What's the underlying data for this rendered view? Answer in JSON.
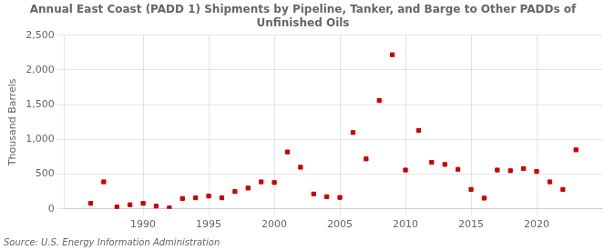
{
  "chart_data": {
    "type": "scatter",
    "title": "Annual East Coast (PADD 1) Shipments by Pipeline, Tanker, and Barge to Other PADDs of\nUnfinished Oils",
    "ylabel": "Thousand Barrels",
    "annotations": [
      "Source: U.S. Energy Information Administration"
    ],
    "x": [
      1986,
      1987,
      1988,
      1989,
      1990,
      1991,
      1992,
      1993,
      1994,
      1995,
      1996,
      1997,
      1998,
      1999,
      2000,
      2001,
      2002,
      2003,
      2004,
      2005,
      2006,
      2007,
      2008,
      2009,
      2010,
      2011,
      2012,
      2013,
      2014,
      2015,
      2016,
      2017,
      2018,
      2019,
      2020,
      2021,
      2022,
      2023
    ],
    "values": [
      80,
      390,
      30,
      60,
      80,
      40,
      15,
      150,
      160,
      185,
      160,
      250,
      300,
      390,
      380,
      820,
      600,
      215,
      175,
      165,
      1100,
      720,
      1560,
      2220,
      560,
      1130,
      670,
      640,
      570,
      280,
      155,
      560,
      550,
      580,
      540,
      390,
      280,
      850
    ],
    "color": "#cc0000",
    "marker": "square",
    "xlim": [
      1984,
      2025
    ],
    "xticks": [
      1990,
      1995,
      2000,
      2005,
      2010,
      2015,
      2020
    ],
    "ylim": [
      0,
      2500
    ],
    "yticks": [
      0,
      500,
      {
        "value": 1000,
        "label": "1,000"
      },
      {
        "value": 1500,
        "label": "1,500"
      },
      {
        "value": 2000,
        "label": "2,000"
      },
      {
        "value": 2500,
        "label": "2,500"
      }
    ],
    "grid": true
  }
}
